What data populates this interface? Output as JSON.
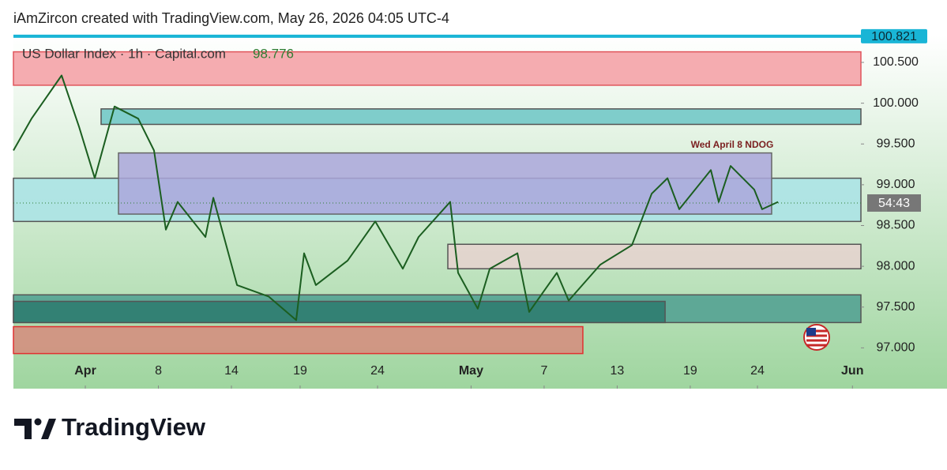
{
  "attribution": "iAmZircon created with TradingView.com, May 26, 2026 04:05 UTC-4",
  "brand": "TradingView",
  "chart_data": {
    "type": "line",
    "title": "US Dollar Index · 1h · Capital.com",
    "last_value": 98.776,
    "countdown": "54:43",
    "high_marker": 100.821,
    "color": "#1b5e20",
    "x": [
      -4.92,
      -3.68,
      -1.62,
      -0.43,
      0.65,
      2.0,
      3.62,
      4.7,
      5.51,
      6.32,
      8.22,
      8.76,
      10.38,
      12.54,
      14.43,
      14.97,
      15.78,
      17.95,
      19.84,
      21.73,
      22.81,
      24.97,
      25.51,
      26.86,
      27.68,
      29.57,
      30.38,
      32.27,
      33.08,
      35.24,
      37.41,
      38.76,
      39.84,
      40.65,
      42.81,
      43.35,
      44.16,
      45.78,
      46.32,
      47.41
    ],
    "values": [
      99.42,
      99.81,
      100.34,
      99.71,
      99.08,
      99.96,
      99.81,
      99.42,
      98.45,
      98.79,
      98.36,
      98.84,
      97.77,
      97.63,
      97.34,
      98.16,
      97.77,
      98.07,
      98.55,
      97.97,
      98.36,
      98.79,
      97.92,
      97.48,
      97.97,
      98.16,
      97.44,
      97.92,
      97.58,
      98.02,
      98.26,
      98.89,
      99.08,
      98.7,
      99.18,
      98.79,
      99.23,
      98.94,
      98.7,
      98.79
    ],
    "zones": [
      {
        "from": -4.92,
        "to": 53.08,
        "low": 98.55,
        "high": 99.08,
        "color": "#a9e3e6",
        "border": "#555555"
      },
      {
        "from": -4.92,
        "to": 53.08,
        "low": 100.22,
        "high": 100.63,
        "color": "#f59ea3",
        "border": "#e0555c"
      },
      {
        "from": 1.08,
        "to": 53.08,
        "low": 99.74,
        "high": 99.93,
        "color": "#6cc5c5",
        "border": "#555555"
      },
      {
        "from": 2.27,
        "to": 46.97,
        "low": 98.64,
        "high": 99.39,
        "color": "#aba7dc",
        "border": "#666666",
        "label": "Wed April 8 NDOG"
      },
      {
        "from": 24.81,
        "to": 53.08,
        "low": 97.97,
        "high": 98.27,
        "color": "#e6d2cf",
        "border": "#555555"
      },
      {
        "from": -4.92,
        "to": 53.08,
        "low": 97.31,
        "high": 97.65,
        "color": "#4f9f90",
        "border": "#555555"
      },
      {
        "from": -4.92,
        "to": 39.68,
        "low": 97.31,
        "high": 97.57,
        "color": "#2b7a6f",
        "border": "#555555"
      },
      {
        "from": -4.92,
        "to": 34.05,
        "low": 96.93,
        "high": 97.26,
        "color": "#d68b7c",
        "border": "#e03030"
      }
    ],
    "xlim": [
      -4.92,
      53.08
    ],
    "ylim": [
      96.5,
      100.81
    ],
    "xticks": [
      {
        "value": 0,
        "label": "Apr"
      },
      {
        "value": 5,
        "label": "8"
      },
      {
        "value": 10,
        "label": "14"
      },
      {
        "value": 14.7,
        "label": "19"
      },
      {
        "value": 20,
        "label": "24"
      },
      {
        "value": 26.4,
        "label": "May"
      },
      {
        "value": 31.4,
        "label": "7"
      },
      {
        "value": 36.4,
        "label": "13"
      },
      {
        "value": 41.4,
        "label": "19"
      },
      {
        "value": 46,
        "label": "24"
      },
      {
        "value": 52.5,
        "label": "Jun"
      }
    ],
    "yticks": [
      {
        "value": 97,
        "label": "97.000"
      },
      {
        "value": 97.5,
        "label": "97.500"
      },
      {
        "value": 98,
        "label": "98.000"
      },
      {
        "value": 98.5,
        "label": "98.500"
      },
      {
        "value": 99,
        "label": "99.000"
      },
      {
        "value": 99.5,
        "label": "99.500"
      },
      {
        "value": 100,
        "label": "100.000"
      },
      {
        "value": 100.5,
        "label": "100.500"
      }
    ]
  }
}
